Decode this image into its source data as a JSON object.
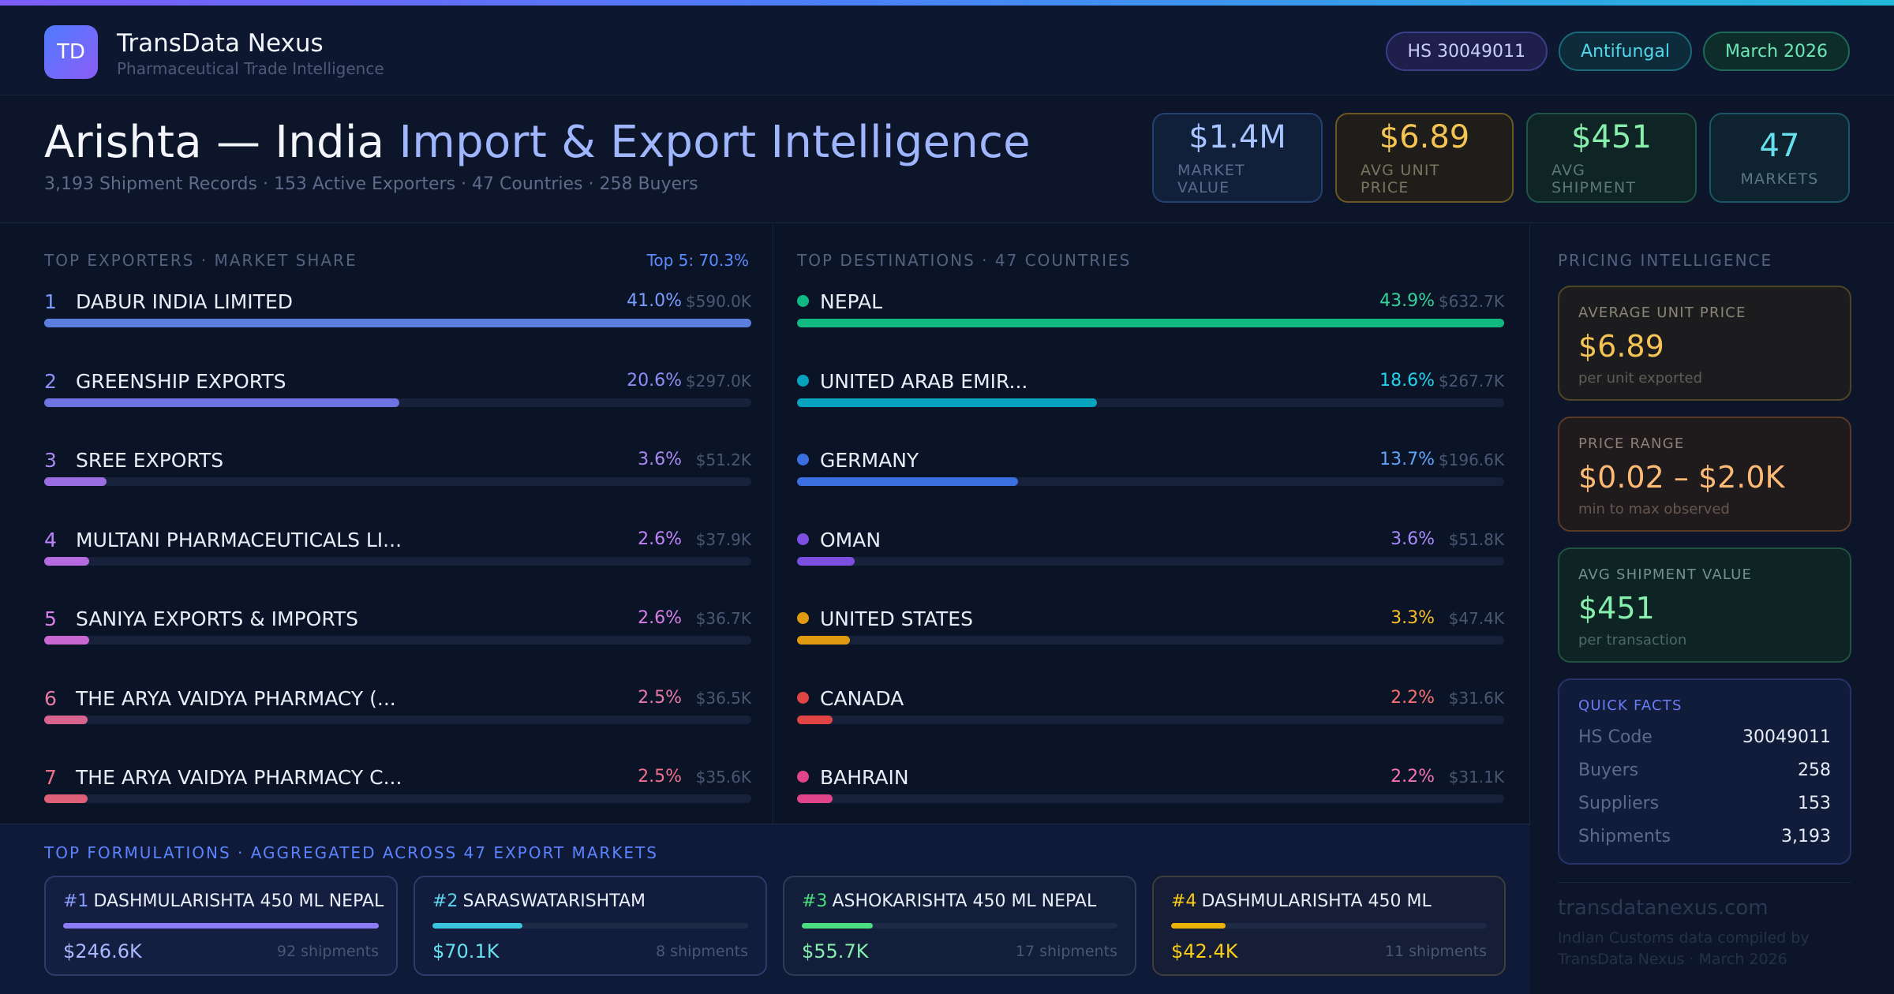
{
  "header": {
    "logo_text": "TD",
    "brand": "TransData Nexus",
    "brand_sub": "Pharmaceutical Trade Intelligence",
    "pills": [
      "HS 30049011",
      "Antifungal",
      "March 2026"
    ]
  },
  "title": {
    "part1": "Arishta — India ",
    "part2": "Import & Export Intelligence",
    "subline": "3,193 Shipment Records · 153 Active Exporters · 47 Countries · 258 Buyers"
  },
  "kpis": [
    {
      "value": "$1.4M",
      "label": "MARKET VALUE"
    },
    {
      "value": "$6.89",
      "label": "AVG UNIT PRICE"
    },
    {
      "value": "$451",
      "label": "AVG SHIPMENT"
    },
    {
      "value": "47",
      "label": "MARKETS"
    }
  ],
  "exporters": {
    "label": "TOP EXPORTERS · MARKET SHARE",
    "top5": "Top 5: 70.3%",
    "rows": [
      {
        "rank": "1",
        "name": "DABUR INDIA LIMITED",
        "pct": "41.0%",
        "share": 41.0,
        "value": "$590.0K",
        "color": "#5b7fe0",
        "pct_color": "#7b9cff"
      },
      {
        "rank": "2",
        "name": "GREENSHIP EXPORTS",
        "pct": "20.6%",
        "share": 20.6,
        "value": "$297.0K",
        "color": "#6d73e0",
        "pct_color": "#8c8ff5"
      },
      {
        "rank": "3",
        "name": "SREE EXPORTS",
        "pct": "3.6%",
        "share": 3.6,
        "value": "$51.2K",
        "color": "#9a6de0",
        "pct_color": "#a98af5"
      },
      {
        "rank": "4",
        "name": "MULTANI PHARMACEUTICALS LI...",
        "pct": "2.6%",
        "share": 2.6,
        "value": "$37.9K",
        "color": "#b56ae0",
        "pct_color": "#c084fc"
      },
      {
        "rank": "5",
        "name": "SANIYA EXPORTS & IMPORTS",
        "pct": "2.6%",
        "share": 2.6,
        "value": "$36.7K",
        "color": "#c868d0",
        "pct_color": "#d77ee8"
      },
      {
        "rank": "6",
        "name": "THE ARYA VAIDYA PHARMACY (...",
        "pct": "2.5%",
        "share": 2.5,
        "value": "$36.5K",
        "color": "#d8638f",
        "pct_color": "#e879a8"
      },
      {
        "rank": "7",
        "name": "THE ARYA VAIDYA PHARMACY C...",
        "pct": "2.5%",
        "share": 2.5,
        "value": "$35.6K",
        "color": "#de5f78",
        "pct_color": "#f0708c"
      }
    ]
  },
  "destinations": {
    "label": "TOP DESTINATIONS · 47 COUNTRIES",
    "rows": [
      {
        "name": "NEPAL",
        "pct": "43.9%",
        "share": 43.9,
        "value": "$632.7K",
        "color": "#10b981",
        "pct_color": "#34d399"
      },
      {
        "name": "UNITED ARAB EMIR...",
        "pct": "18.6%",
        "share": 18.6,
        "value": "$267.7K",
        "color": "#06a3bf",
        "pct_color": "#22d3ee"
      },
      {
        "name": "GERMANY",
        "pct": "13.7%",
        "share": 13.7,
        "value": "$196.6K",
        "color": "#3b6fe0",
        "pct_color": "#60a5fa"
      },
      {
        "name": "OMAN",
        "pct": "3.6%",
        "share": 3.6,
        "value": "$51.8K",
        "color": "#7c4fe0",
        "pct_color": "#a78bfa"
      },
      {
        "name": "UNITED STATES",
        "pct": "3.3%",
        "share": 3.3,
        "value": "$47.4K",
        "color": "#e09a10",
        "pct_color": "#fbbf24"
      },
      {
        "name": "CANADA",
        "pct": "2.2%",
        "share": 2.2,
        "value": "$31.6K",
        "color": "#e04444",
        "pct_color": "#f87171"
      },
      {
        "name": "BAHRAIN",
        "pct": "2.2%",
        "share": 2.2,
        "value": "$31.1K",
        "color": "#e0458a",
        "pct_color": "#f472b6"
      }
    ]
  },
  "pricing": {
    "label": "PRICING INTELLIGENCE",
    "cards": [
      {
        "label": "AVERAGE UNIT PRICE",
        "value": "$6.89",
        "sub": "per unit exported"
      },
      {
        "label": "PRICE RANGE",
        "value": "$0.02 – $2.0K",
        "sub": "min to max observed"
      },
      {
        "label": "AVG SHIPMENT VALUE",
        "value": "$451",
        "sub": "per transaction"
      }
    ],
    "facts_title": "QUICK FACTS",
    "facts": [
      {
        "k": "HS Code",
        "v": "30049011"
      },
      {
        "k": "Buyers",
        "v": "258"
      },
      {
        "k": "Suppliers",
        "v": "153"
      },
      {
        "k": "Shipments",
        "v": "3,193"
      }
    ],
    "footer_site": "transdatanexus.com",
    "footer_note": "Indian Customs data compiled by TransData Nexus · March 2026"
  },
  "formulations": {
    "label": "TOP FORMULATIONS · AGGREGATED ACROSS 47 EXPORT MARKETS",
    "cards": [
      {
        "rank": "#1",
        "name": "DASHMULARISHTA 450 ML NEPAL",
        "value": "$246.6K",
        "shipments": "92 shipments",
        "fill": 1.0,
        "color": "#8b7cf5",
        "rank_color": "#8b9cff",
        "val_color": "#a8b8ff",
        "border": "#2f3a6a",
        "bg": "#141e40"
      },
      {
        "rank": "#2",
        "name": "SARASWATARISHTAM",
        "value": "$70.1K",
        "shipments": "8 shipments",
        "fill": 0.284,
        "color": "#38c7de",
        "rank_color": "#5fd6ea",
        "val_color": "#67e0ee",
        "border": "#2f3a6a",
        "bg": "#121d3e"
      },
      {
        "rank": "#3",
        "name": "ASHOKARISHTA 450 ML NEPAL",
        "value": "$55.7K",
        "shipments": "17 shipments",
        "fill": 0.226,
        "color": "#4ade80",
        "rank_color": "#4ade80",
        "val_color": "#86efac",
        "border": "#2c3d55",
        "bg": "#121e3a"
      },
      {
        "rank": "#4",
        "name": "DASHMULARISHTA 450 ML",
        "value": "$42.4K",
        "shipments": "11 shipments",
        "fill": 0.172,
        "color": "#eab308",
        "rank_color": "#facc15",
        "val_color": "#facc15",
        "border": "#3d3e3a",
        "bg": "#161d36"
      }
    ]
  }
}
